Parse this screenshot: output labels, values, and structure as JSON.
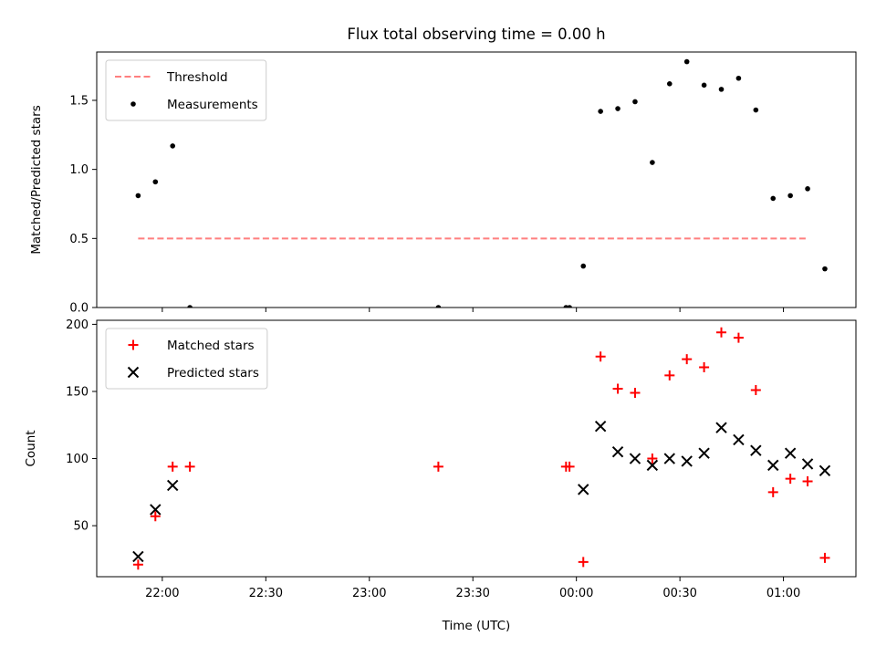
{
  "figure": {
    "title": "Flux total observing time = 0.00 h",
    "xlabel": "Time (UTC)",
    "x_ticks": [
      "22:00",
      "22:30",
      "23:00",
      "23:30",
      "00:00",
      "00:30",
      "01:00"
    ],
    "x_range": [
      "21:41",
      "01:21"
    ]
  },
  "chart_data": [
    {
      "type": "scatter",
      "ylabel": "Matched/Predicted stars",
      "ylim": [
        0,
        1.85
      ],
      "y_ticks": [
        "0.0",
        "0.5",
        "1.0",
        "1.5"
      ],
      "grid": false,
      "legend_position": "top-left",
      "threshold": {
        "name": "Threshold",
        "value": 0.5,
        "x_range": [
          "21:53",
          "01:07"
        ],
        "color": "#ff7f7f",
        "style": "dashed"
      },
      "series": [
        {
          "name": "Measurements",
          "color": "#000000",
          "marker": "dot",
          "points": [
            {
              "x": "21:53",
              "y": 0.81
            },
            {
              "x": "21:58",
              "y": 0.91
            },
            {
              "x": "22:03",
              "y": 1.17
            },
            {
              "x": "22:08",
              "y": 0.0
            },
            {
              "x": "23:20",
              "y": 0.0
            },
            {
              "x": "23:57",
              "y": 0.0
            },
            {
              "x": "23:58",
              "y": 0.0
            },
            {
              "x": "00:02",
              "y": 0.3
            },
            {
              "x": "00:07",
              "y": 1.42
            },
            {
              "x": "00:12",
              "y": 1.44
            },
            {
              "x": "00:17",
              "y": 1.49
            },
            {
              "x": "00:22",
              "y": 1.05
            },
            {
              "x": "00:27",
              "y": 1.62
            },
            {
              "x": "00:32",
              "y": 1.78
            },
            {
              "x": "00:37",
              "y": 1.61
            },
            {
              "x": "00:42",
              "y": 1.58
            },
            {
              "x": "00:47",
              "y": 1.66
            },
            {
              "x": "00:52",
              "y": 1.43
            },
            {
              "x": "00:57",
              "y": 0.79
            },
            {
              "x": "01:02",
              "y": 0.81
            },
            {
              "x": "01:07",
              "y": 0.86
            },
            {
              "x": "01:12",
              "y": 0.28
            }
          ]
        }
      ]
    },
    {
      "type": "scatter",
      "ylabel": "Count",
      "ylim": [
        12,
        203
      ],
      "y_ticks": [
        "50",
        "100",
        "150",
        "200"
      ],
      "grid": false,
      "legend_position": "top-left",
      "series": [
        {
          "name": "Matched stars",
          "color": "#ff0000",
          "marker": "plus",
          "points": [
            {
              "x": "21:53",
              "y": 21
            },
            {
              "x": "21:58",
              "y": 57
            },
            {
              "x": "22:03",
              "y": 94
            },
            {
              "x": "22:08",
              "y": 94
            },
            {
              "x": "23:20",
              "y": 94
            },
            {
              "x": "23:57",
              "y": 94
            },
            {
              "x": "23:58",
              "y": 94
            },
            {
              "x": "00:02",
              "y": 23
            },
            {
              "x": "00:07",
              "y": 176
            },
            {
              "x": "00:12",
              "y": 152
            },
            {
              "x": "00:17",
              "y": 149
            },
            {
              "x": "00:22",
              "y": 100
            },
            {
              "x": "00:27",
              "y": 162
            },
            {
              "x": "00:32",
              "y": 174
            },
            {
              "x": "00:37",
              "y": 168
            },
            {
              "x": "00:42",
              "y": 194
            },
            {
              "x": "00:47",
              "y": 190
            },
            {
              "x": "00:52",
              "y": 151
            },
            {
              "x": "00:57",
              "y": 75
            },
            {
              "x": "01:02",
              "y": 85
            },
            {
              "x": "01:07",
              "y": 83
            },
            {
              "x": "01:12",
              "y": 26
            }
          ]
        },
        {
          "name": "Predicted stars",
          "color": "#000000",
          "marker": "x",
          "points": [
            {
              "x": "21:53",
              "y": 27
            },
            {
              "x": "21:58",
              "y": 62
            },
            {
              "x": "22:03",
              "y": 80
            },
            {
              "x": "00:02",
              "y": 77
            },
            {
              "x": "00:07",
              "y": 124
            },
            {
              "x": "00:12",
              "y": 105
            },
            {
              "x": "00:17",
              "y": 100
            },
            {
              "x": "00:22",
              "y": 95
            },
            {
              "x": "00:27",
              "y": 100
            },
            {
              "x": "00:32",
              "y": 98
            },
            {
              "x": "00:37",
              "y": 104
            },
            {
              "x": "00:42",
              "y": 123
            },
            {
              "x": "00:47",
              "y": 114
            },
            {
              "x": "00:52",
              "y": 106
            },
            {
              "x": "00:57",
              "y": 95
            },
            {
              "x": "01:02",
              "y": 104
            },
            {
              "x": "01:07",
              "y": 96
            },
            {
              "x": "01:12",
              "y": 91
            }
          ]
        }
      ]
    }
  ]
}
